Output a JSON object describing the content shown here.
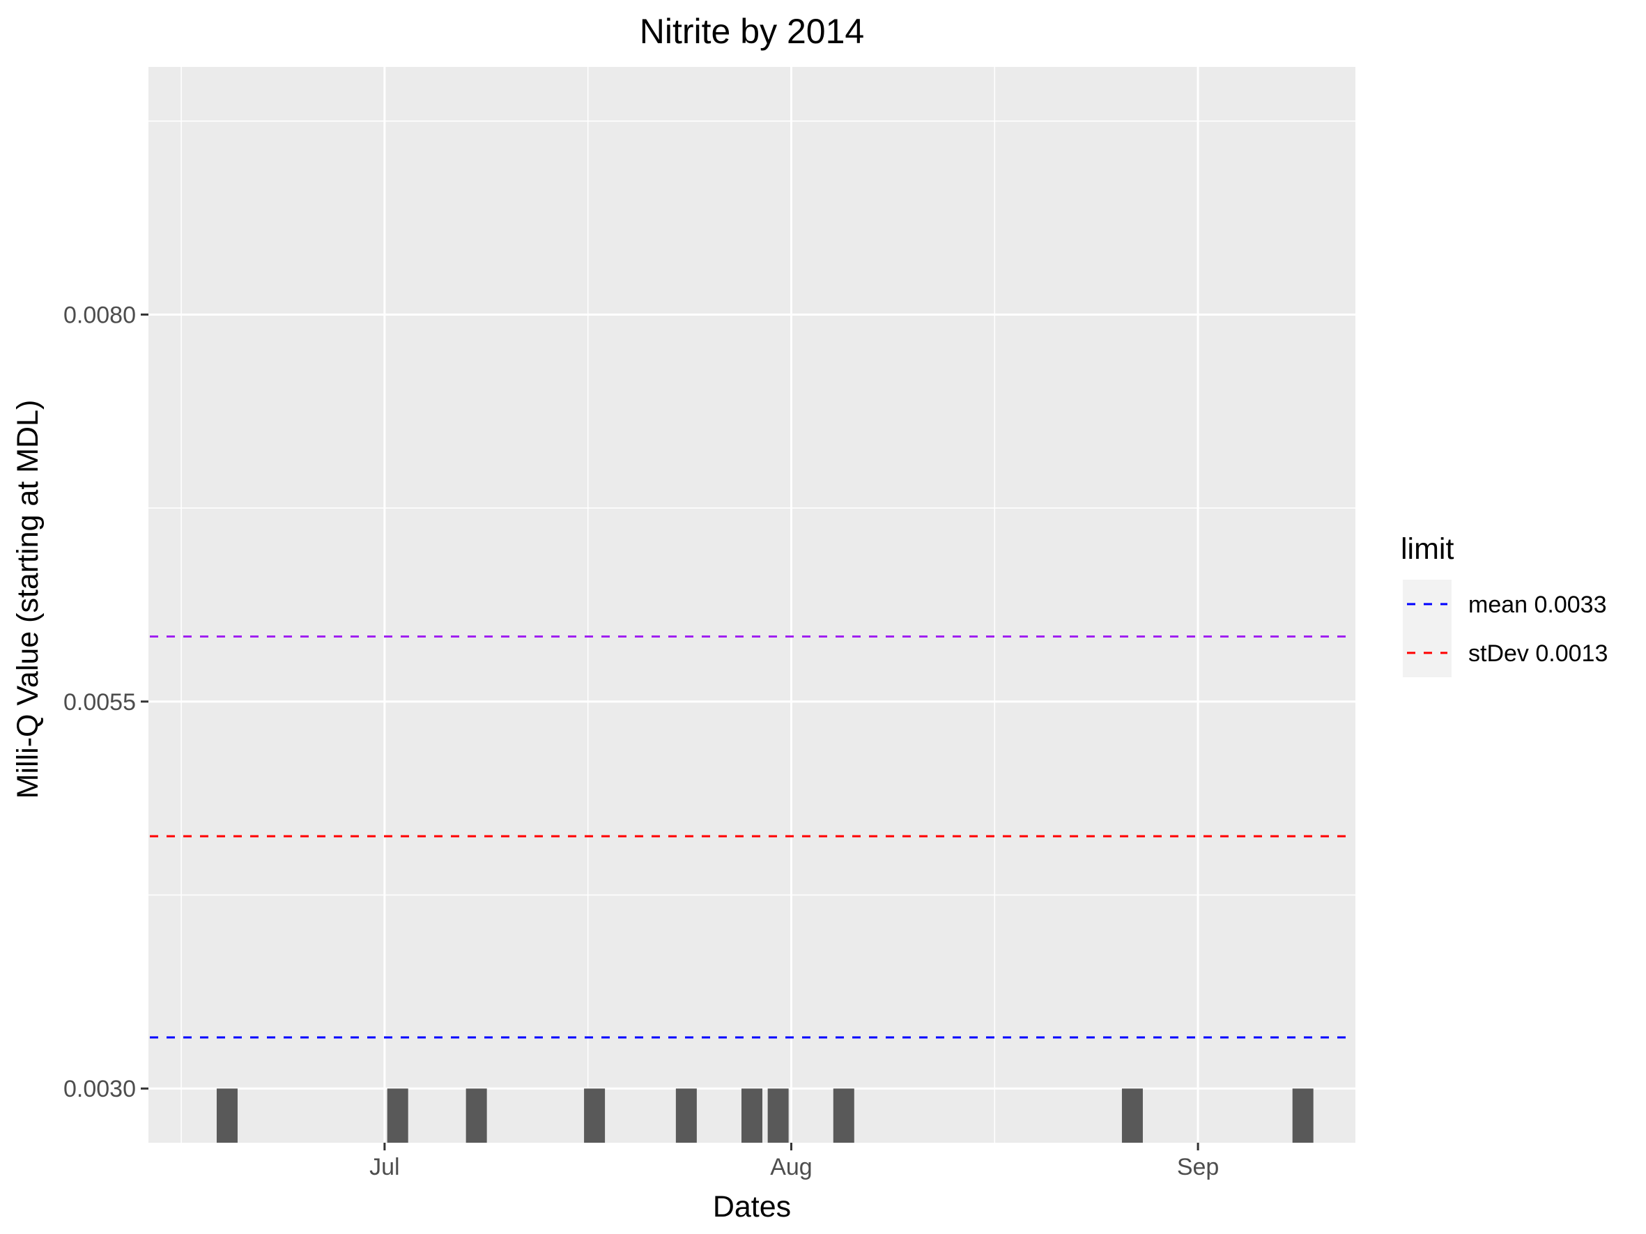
{
  "chart_data": {
    "type": "bar",
    "title": "Nitrite by 2014",
    "xlabel": "Dates",
    "ylabel": "Milli-Q Value (starting at MDL)",
    "x_axis": {
      "type": "date",
      "range": [
        "2014-06-13",
        "2014-09-13"
      ],
      "ticks": [
        {
          "date": "2014-07-01",
          "label": "Jul"
        },
        {
          "date": "2014-08-01",
          "label": "Aug"
        },
        {
          "date": "2014-09-01",
          "label": "Sep"
        }
      ]
    },
    "y_axis": {
      "range": [
        0.00265,
        0.0096
      ],
      "ticks": [
        {
          "value": 0.003,
          "label": "0.0030"
        },
        {
          "value": 0.0055,
          "label": "0.0055"
        },
        {
          "value": 0.008,
          "label": "0.0080"
        }
      ]
    },
    "grid": true,
    "bar_color": "#595959",
    "panel_color": "#ebebeb",
    "bars": [
      {
        "date": "2014-06-19",
        "value": 0.003
      },
      {
        "date": "2014-07-02",
        "value": 0.003
      },
      {
        "date": "2014-07-08",
        "value": 0.003
      },
      {
        "date": "2014-07-17",
        "value": 0.003
      },
      {
        "date": "2014-07-24",
        "value": 0.003
      },
      {
        "date": "2014-07-29",
        "value": 0.003
      },
      {
        "date": "2014-07-31",
        "value": 0.003
      },
      {
        "date": "2014-08-05",
        "value": 0.003
      },
      {
        "date": "2014-08-27",
        "value": 0.003
      },
      {
        "date": "2014-09-09",
        "value": 0.003
      }
    ],
    "reference_lines": [
      {
        "value": 0.00333,
        "color": "#0000ff",
        "style": "dashed",
        "legend": "mean 0.0033"
      },
      {
        "value": 0.00463,
        "color": "#ff0000",
        "style": "dashed",
        "legend": "stDev 0.0013"
      },
      {
        "value": 0.00592,
        "color": "#a020f0",
        "style": "dashed"
      }
    ],
    "legend": {
      "title": "limit",
      "placement": "right",
      "entries": [
        {
          "label": "mean 0.0033",
          "color": "#0000ff"
        },
        {
          "label": "stDev 0.0013",
          "color": "#ff0000"
        }
      ]
    }
  }
}
